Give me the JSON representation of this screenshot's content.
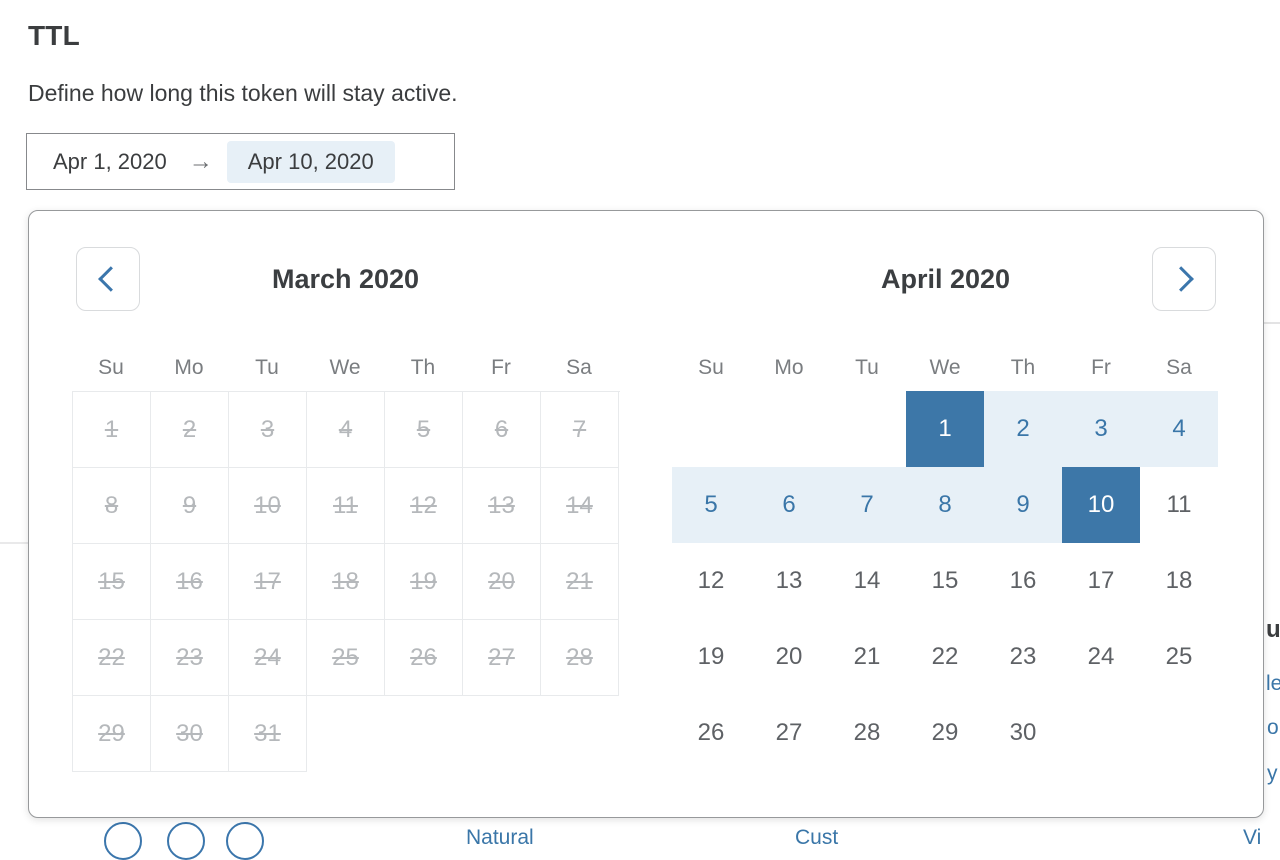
{
  "page": {
    "title": "TTL",
    "description": "Define how long this token will stay active."
  },
  "date_range_input": {
    "start_value": "Apr 1, 2020",
    "arrow_icon": "→",
    "end_value": "Apr 10, 2020",
    "end_highlighted": true
  },
  "calendar": {
    "weekdays": [
      "Su",
      "Mo",
      "Tu",
      "We",
      "Th",
      "Fr",
      "Sa"
    ],
    "selected_range": {
      "start": "Apr 1, 2020",
      "end": "Apr 10, 2020"
    },
    "months": [
      {
        "title": "March 2020",
        "default_state": "disabled",
        "bordered_grid": true,
        "weeks": [
          [
            1,
            2,
            3,
            4,
            5,
            6,
            7
          ],
          [
            8,
            9,
            10,
            11,
            12,
            13,
            14
          ],
          [
            15,
            16,
            17,
            18,
            19,
            20,
            21
          ],
          [
            22,
            23,
            24,
            25,
            26,
            27,
            28
          ],
          [
            29,
            30,
            31
          ]
        ]
      },
      {
        "title": "April 2020",
        "default_state": "plain",
        "bordered_grid": false,
        "weeks": [
          [
            null,
            null,
            null,
            {
              "d": 1,
              "state": "selected"
            },
            {
              "d": 2,
              "state": "range"
            },
            {
              "d": 3,
              "state": "range"
            },
            {
              "d": 4,
              "state": "range"
            }
          ],
          [
            {
              "d": 5,
              "state": "range"
            },
            {
              "d": 6,
              "state": "range"
            },
            {
              "d": 7,
              "state": "range"
            },
            {
              "d": 8,
              "state": "range"
            },
            {
              "d": 9,
              "state": "range"
            },
            {
              "d": 10,
              "state": "selected"
            },
            11
          ],
          [
            12,
            13,
            14,
            15,
            16,
            17,
            18
          ],
          [
            19,
            20,
            21,
            22,
            23,
            24,
            25
          ],
          [
            26,
            27,
            28,
            29,
            30
          ]
        ]
      }
    ]
  },
  "colors": {
    "selected_day_bg": "#3d77a8",
    "range_bg": "#e7f0f7",
    "range_text": "#3a76a8",
    "disabled_text": "#b5b8bb",
    "day_text": "#5e6165",
    "popup_border": "#97999b",
    "cell_border": "#e8eaec",
    "accent_blue": "#3b76ac"
  },
  "background_fragments": {
    "right_heading": "u",
    "right_links": [
      "le",
      "o",
      "y"
    ],
    "bottom_links": [
      "Natural",
      "Cust",
      "Vi"
    ]
  }
}
